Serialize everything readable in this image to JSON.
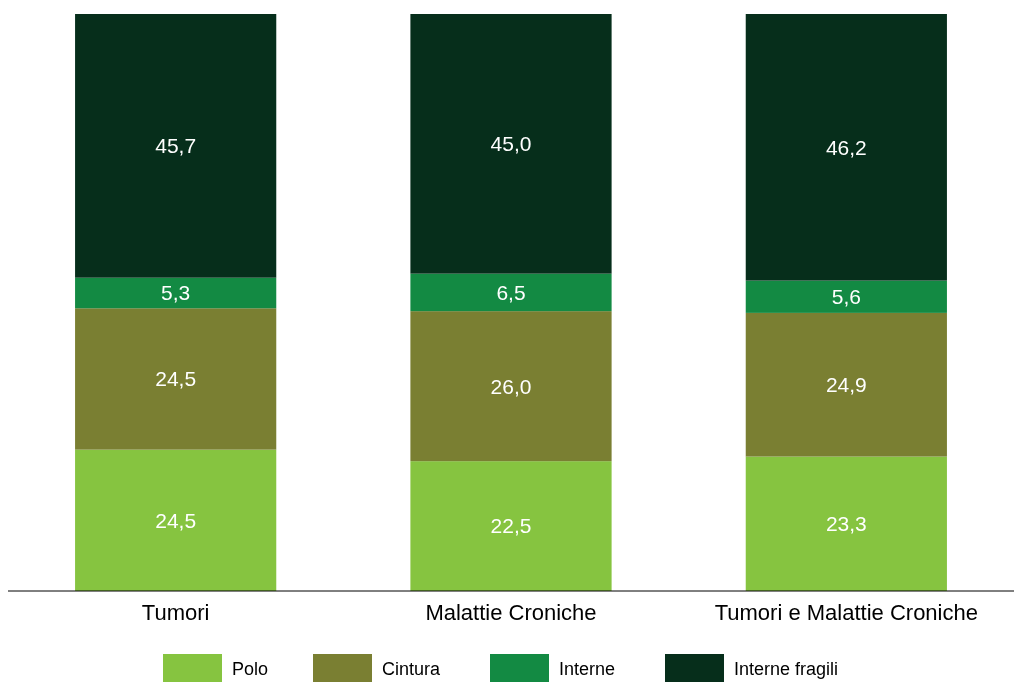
{
  "chart_data": {
    "type": "bar",
    "stacked": true,
    "categories": [
      "Tumori",
      "Malattie Croniche",
      "Tumori e Malattie Croniche"
    ],
    "series": [
      {
        "name": "Polo",
        "color": "#86c440",
        "values": [
          24.5,
          22.5,
          23.3
        ],
        "value_labels": [
          "24,5",
          "22,5",
          "23,3"
        ]
      },
      {
        "name": "Cintura",
        "color": "#7a7f32",
        "values": [
          24.5,
          26.0,
          24.9
        ],
        "value_labels": [
          "24,5",
          "26,0",
          "24,9"
        ]
      },
      {
        "name": "Interne",
        "color": "#138a43",
        "values": [
          5.3,
          6.5,
          5.6
        ],
        "value_labels": [
          "5,3",
          "6,5",
          "5,6"
        ]
      },
      {
        "name": "Interne fragili",
        "color": "#062e1b",
        "values": [
          45.7,
          45.0,
          46.2
        ],
        "value_labels": [
          "45,7",
          "45,0",
          "46,2"
        ]
      }
    ],
    "tick_labels": "x",
    "legend": "bottom"
  }
}
